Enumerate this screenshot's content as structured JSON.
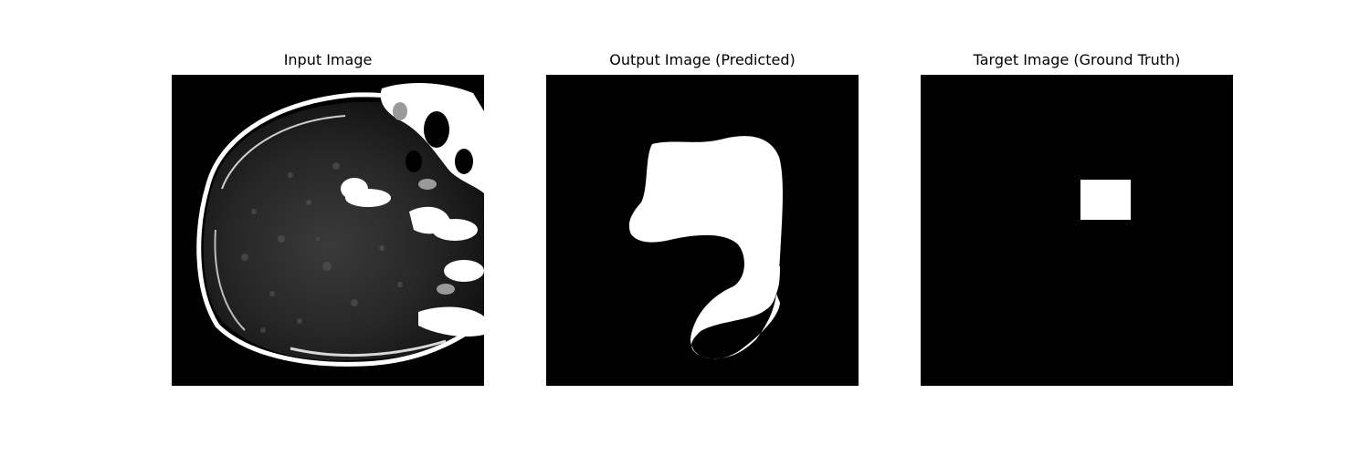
{
  "figure": {
    "panels": [
      {
        "title": "Input Image"
      },
      {
        "title": "Output Image (Predicted)"
      },
      {
        "title": "Target Image (Ground Truth)"
      }
    ]
  },
  "colors": {
    "background": "#ffffff",
    "image_background": "#000000",
    "mask_foreground": "#ffffff"
  }
}
